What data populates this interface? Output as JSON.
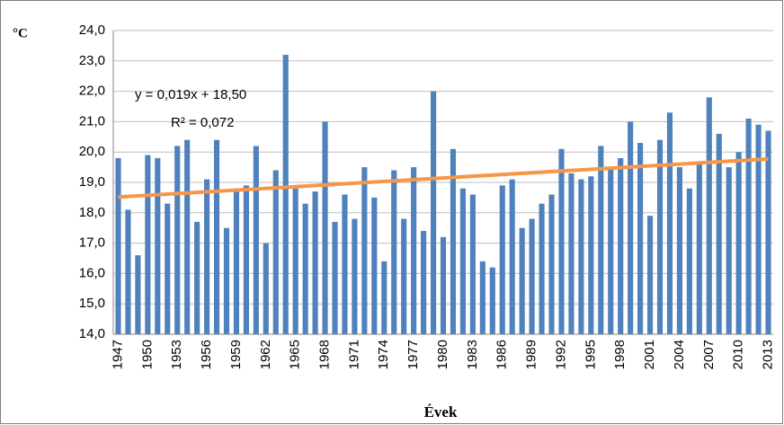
{
  "chart_data": {
    "type": "bar",
    "y_label": "°C",
    "x_label": "Évek",
    "categories": [
      "1947",
      null,
      null,
      "1950",
      null,
      null,
      "1953",
      null,
      null,
      "1956",
      null,
      null,
      "1959",
      null,
      null,
      "1962",
      null,
      null,
      "1965",
      null,
      null,
      "1968",
      null,
      null,
      "1971",
      null,
      null,
      "1974",
      null,
      null,
      "1977",
      null,
      null,
      "1980",
      null,
      null,
      "1983",
      null,
      null,
      "1986",
      null,
      null,
      "1989",
      null,
      null,
      "1992",
      null,
      null,
      "1995",
      null,
      null,
      "1998",
      null,
      null,
      "2001",
      null,
      null,
      "2004",
      null,
      null,
      "2007",
      null,
      null,
      "2010",
      null,
      null,
      "2013"
    ],
    "values": [
      19.8,
      18.1,
      16.6,
      19.9,
      19.8,
      18.3,
      20.2,
      20.4,
      17.7,
      19.1,
      20.4,
      17.5,
      18.8,
      18.9,
      20.2,
      17.0,
      19.4,
      23.2,
      18.8,
      18.3,
      18.7,
      21.0,
      17.7,
      18.6,
      17.8,
      19.5,
      18.5,
      16.4,
      19.4,
      17.8,
      19.5,
      17.4,
      22.0,
      17.2,
      20.1,
      18.8,
      18.6,
      16.4,
      16.2,
      18.9,
      19.1,
      17.5,
      17.8,
      18.3,
      18.6,
      20.1,
      19.3,
      19.1,
      19.2,
      20.2,
      19.5,
      19.8,
      21.0,
      20.3,
      17.9,
      20.4,
      21.3,
      19.5,
      18.8,
      19.6,
      21.8,
      20.6,
      19.5,
      20.0,
      21.1,
      20.9,
      20.7
    ],
    "color": "#4f81bd",
    "trendline": {
      "slope": 0.019,
      "intercept": 18.5,
      "color": "#f79646",
      "equation": "y = 0,019x + 18,50",
      "r_squared": "R² = 0,072"
    },
    "ylim": [
      14,
      24
    ],
    "yticks": [
      {
        "value": 14,
        "label": "14,0"
      },
      {
        "value": 15,
        "label": "15,0"
      },
      {
        "value": 16,
        "label": "16,0"
      },
      {
        "value": 17,
        "label": "17,0"
      },
      {
        "value": 18,
        "label": "18,0"
      },
      {
        "value": 19,
        "label": "19,0"
      },
      {
        "value": 20,
        "label": "20,0"
      },
      {
        "value": 21,
        "label": "21,0"
      },
      {
        "value": 22,
        "label": "22,0"
      },
      {
        "value": 23,
        "label": "23,0"
      },
      {
        "value": 24,
        "label": "24,0"
      }
    ],
    "grid": true
  }
}
